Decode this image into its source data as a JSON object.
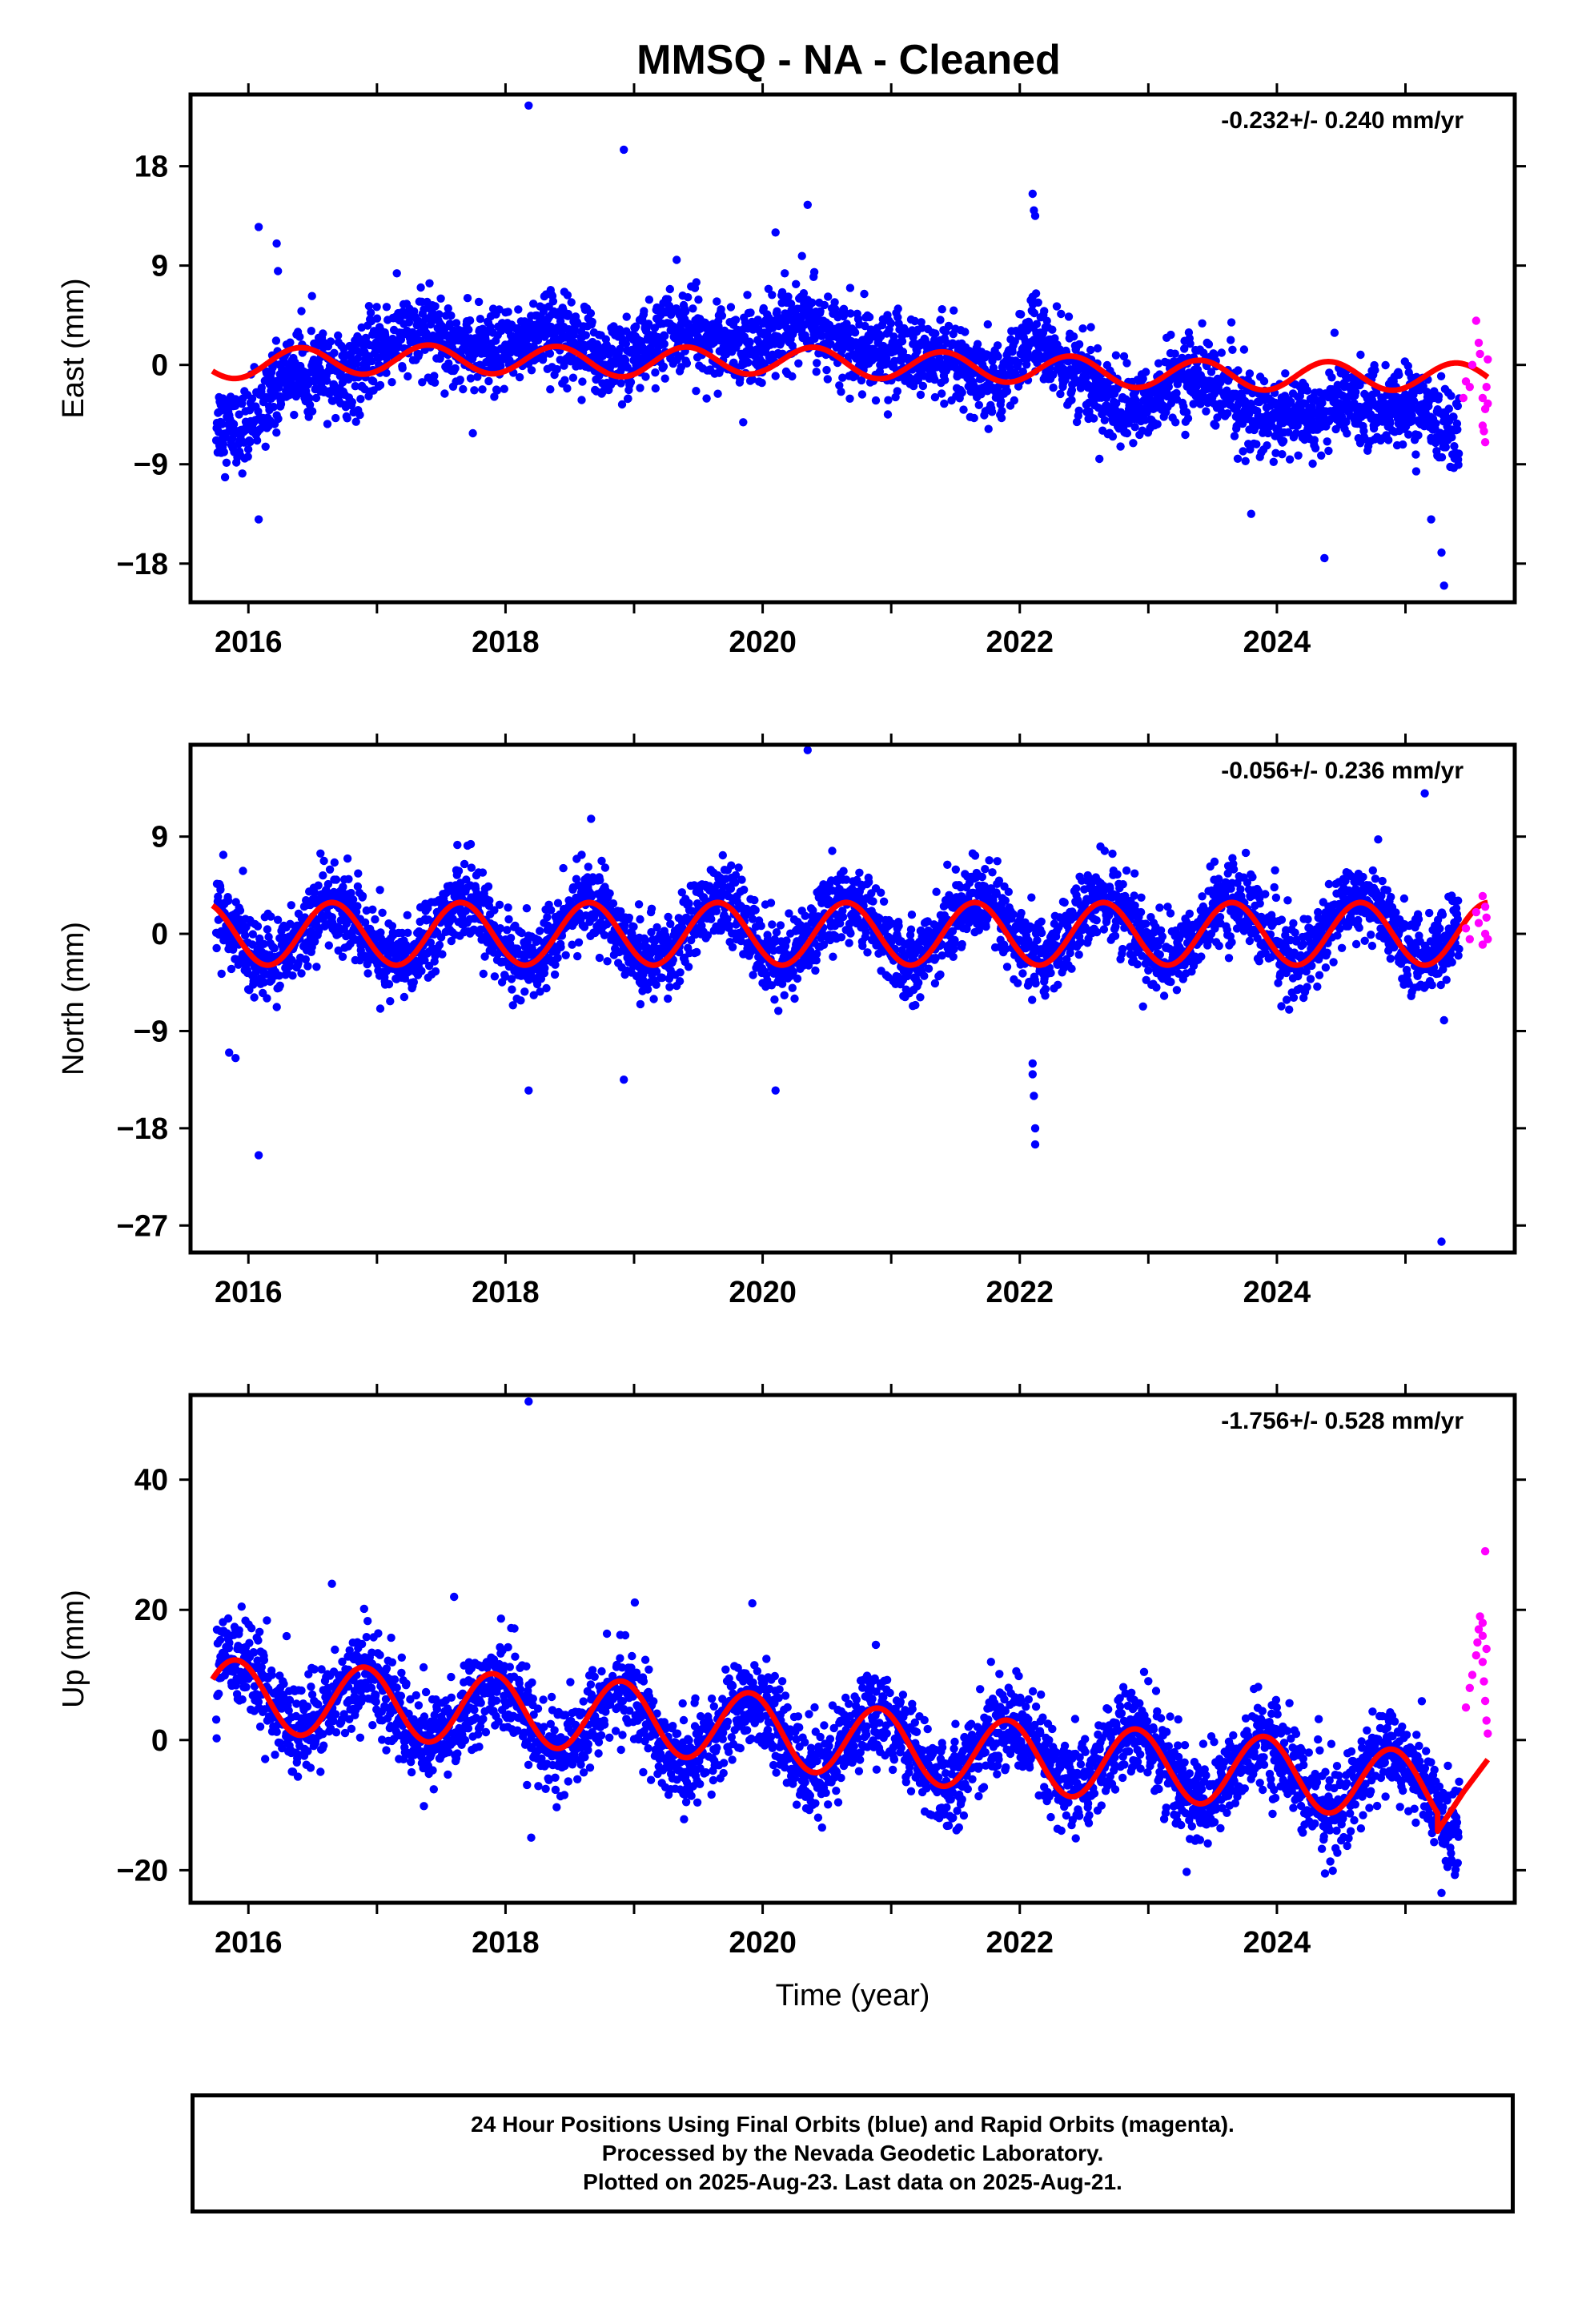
{
  "title": "MMSQ  - NA - Cleaned",
  "colors": {
    "final": "#0000ff",
    "rapid": "#ff00ff",
    "model": "#ff0000",
    "axis": "#000000"
  },
  "caption": {
    "line1": "24 Hour Positions Using Final Orbits (blue) and Rapid Orbits (magenta).",
    "line2": "Processed by the Nevada Geodetic Laboratory.",
    "line3": "Plotted on 2025-Aug-23. Last data on 2025-Aug-21."
  },
  "chart_data": [
    {
      "type": "scatter",
      "name": "east",
      "ylabel": "East (mm)",
      "xlabel": "",
      "rate": "-0.232+/- 0.240 mm/yr",
      "xlim": [
        2015.55,
        2025.85
      ],
      "ylim": [
        -21.5,
        24.5
      ],
      "xticks": [
        2016,
        2018,
        2020,
        2022,
        2024
      ],
      "xtick_labels": [
        "2016",
        "2018",
        "2020",
        "2022",
        "2024"
      ],
      "yticks": [
        -18,
        -9,
        0,
        9,
        18
      ],
      "ytick_labels": [
        "−18",
        "−9",
        "0",
        "9",
        "18"
      ],
      "grid": false,
      "series": [
        {
          "kind": "final",
          "start": 2015.75,
          "end": 2025.42,
          "trend": [
            [
              2015.75,
              -4
            ],
            [
              2016.0,
              -5
            ],
            [
              2016.3,
              -2
            ],
            [
              2016.6,
              -1
            ],
            [
              2017.0,
              2
            ],
            [
              2018.0,
              2
            ],
            [
              2019.0,
              1.5
            ],
            [
              2020.0,
              3
            ],
            [
              2021.0,
              2
            ],
            [
              2021.3,
              -1
            ],
            [
              2021.8,
              -1
            ],
            [
              2022.1,
              3
            ],
            [
              2022.3,
              -1
            ],
            [
              2022.8,
              -3
            ],
            [
              2023.3,
              -2
            ],
            [
              2023.8,
              -3
            ],
            [
              2024.3,
              -6
            ],
            [
              2024.6,
              -3
            ],
            [
              2025.0,
              -3
            ],
            [
              2025.42,
              -8
            ]
          ],
          "annual_amp": 1.2,
          "annual_phase": 0.1,
          "noise": 1.8,
          "outliers": [
            [
              2016.08,
              12.5
            ],
            [
              2016.22,
              11
            ],
            [
              2016.23,
              8.5
            ],
            [
              2016.08,
              -14
            ],
            [
              2018.18,
              23.5
            ],
            [
              2018.92,
              19.5
            ],
            [
              2020.1,
              12
            ],
            [
              2020.35,
              14.5
            ],
            [
              2022.1,
              15.5
            ],
            [
              2022.11,
              14
            ],
            [
              2022.12,
              13.5
            ],
            [
              2023.8,
              -13.5
            ],
            [
              2024.37,
              -17.5
            ],
            [
              2025.3,
              -20
            ],
            [
              2025.28,
              -17
            ],
            [
              2025.2,
              -14
            ]
          ]
        },
        {
          "kind": "rapid",
          "start": 2025.45,
          "end": 2025.64,
          "points": [
            [
              2025.45,
              -3
            ],
            [
              2025.47,
              -1.5
            ],
            [
              2025.5,
              -2
            ],
            [
              2025.52,
              0
            ],
            [
              2025.55,
              4
            ],
            [
              2025.57,
              2
            ],
            [
              2025.58,
              1
            ],
            [
              2025.6,
              -3
            ],
            [
              2025.6,
              -5.5
            ],
            [
              2025.62,
              -7
            ],
            [
              2025.62,
              -4
            ],
            [
              2025.63,
              -2
            ],
            [
              2025.64,
              -3.5
            ],
            [
              2025.64,
              0.5
            ],
            [
              2025.61,
              -6
            ]
          ]
        },
        {
          "kind": "model",
          "start": 2015.72,
          "end": 2025.64,
          "trend": [
            [
              2015.72,
              0
            ],
            [
              2017.0,
              0.5
            ],
            [
              2018.0,
              0.5
            ],
            [
              2019.0,
              0.2
            ],
            [
              2020.0,
              0.5
            ],
            [
              2021.0,
              0
            ],
            [
              2022.0,
              -0.3
            ],
            [
              2023.0,
              -0.8
            ],
            [
              2024.0,
              -1.0
            ],
            [
              2025.0,
              -1.0
            ],
            [
              2025.64,
              -1.2
            ]
          ],
          "annual_amp": 1.3,
          "annual_phase": 0.15
        }
      ]
    },
    {
      "type": "scatter",
      "name": "north",
      "ylabel": "North (mm)",
      "xlabel": "",
      "rate": "-0.056+/- 0.236 mm/yr",
      "xlim": [
        2015.55,
        2025.85
      ],
      "ylim": [
        -29.5,
        17.5
      ],
      "xticks": [
        2016,
        2018,
        2020,
        2022,
        2024
      ],
      "xtick_labels": [
        "2016",
        "2018",
        "2020",
        "2022",
        "2024"
      ],
      "yticks": [
        -27,
        -18,
        -9,
        0,
        9
      ],
      "ytick_labels": [
        "−27",
        "−18",
        "−9",
        "0",
        "9"
      ],
      "grid": false,
      "series": [
        {
          "kind": "final",
          "start": 2015.75,
          "end": 2025.42,
          "trend": [
            [
              2015.75,
              0
            ],
            [
              2025.42,
              0.5
            ]
          ],
          "annual_amp": 2.8,
          "annual_phase": 0.4,
          "noise": 1.8,
          "outliers": [
            [
              2015.85,
              -11
            ],
            [
              2015.9,
              -11.5
            ],
            [
              2016.08,
              -20.5
            ],
            [
              2018.18,
              -14.5
            ],
            [
              2018.92,
              -13.5
            ],
            [
              2020.1,
              -14.5
            ],
            [
              2020.35,
              17
            ],
            [
              2022.1,
              -12
            ],
            [
              2022.1,
              -13
            ],
            [
              2022.11,
              -15
            ],
            [
              2022.12,
              -18
            ],
            [
              2022.12,
              -19.5
            ],
            [
              2025.15,
              13
            ],
            [
              2025.28,
              -28.5
            ],
            [
              2025.3,
              -8
            ]
          ]
        },
        {
          "kind": "rapid",
          "start": 2025.45,
          "end": 2025.64,
          "points": [
            [
              2025.47,
              0.5
            ],
            [
              2025.5,
              -0.5
            ],
            [
              2025.55,
              2
            ],
            [
              2025.57,
              1
            ],
            [
              2025.6,
              3.5
            ],
            [
              2025.6,
              -1
            ],
            [
              2025.62,
              0
            ],
            [
              2025.63,
              1.5
            ],
            [
              2025.64,
              -0.5
            ],
            [
              2025.62,
              2.5
            ]
          ]
        },
        {
          "kind": "model",
          "start": 2015.72,
          "end": 2025.64,
          "trend": [
            [
              2015.72,
              0
            ],
            [
              2025.64,
              0
            ]
          ],
          "annual_amp": 2.9,
          "annual_phase": 0.4
        }
      ]
    },
    {
      "type": "scatter",
      "name": "up",
      "ylabel": "Up (mm)",
      "xlabel": "Time (year)",
      "rate": "-1.756+/- 0.528 mm/yr",
      "xlim": [
        2015.55,
        2025.85
      ],
      "ylim": [
        -25,
        53
      ],
      "xticks": [
        2016,
        2018,
        2020,
        2022,
        2024
      ],
      "xtick_labels": [
        "2016",
        "2018",
        "2020",
        "2022",
        "2024"
      ],
      "yticks": [
        -20,
        0,
        20,
        40
      ],
      "ytick_labels": [
        "−20",
        "0",
        "20",
        "40"
      ],
      "grid": false,
      "series": [
        {
          "kind": "final",
          "start": 2015.75,
          "end": 2025.42,
          "trend": [
            [
              2015.75,
              8
            ],
            [
              2016.6,
              6
            ],
            [
              2017.6,
              4
            ],
            [
              2018.6,
              3
            ],
            [
              2019.6,
              1
            ],
            [
              2020.6,
              0
            ],
            [
              2021.6,
              -2
            ],
            [
              2022.6,
              -3
            ],
            [
              2023.6,
              -5
            ],
            [
              2024.6,
              -6
            ],
            [
              2025.42,
              -8
            ]
          ],
          "annual_amp": 5,
          "annual_phase": 0.65,
          "noise": 3.5,
          "outliers": [
            [
              2018.18,
              52
            ],
            [
              2019.92,
              21
            ],
            [
              2018.2,
              -15
            ],
            [
              2025.28,
              -23.5
            ],
            [
              2016.65,
              24
            ],
            [
              2017.6,
              22
            ]
          ]
        },
        {
          "kind": "rapid",
          "start": 2025.45,
          "end": 2025.64,
          "points": [
            [
              2025.47,
              5
            ],
            [
              2025.5,
              8
            ],
            [
              2025.52,
              10
            ],
            [
              2025.55,
              13
            ],
            [
              2025.56,
              15
            ],
            [
              2025.57,
              17
            ],
            [
              2025.58,
              19
            ],
            [
              2025.6,
              18
            ],
            [
              2025.6,
              12
            ],
            [
              2025.61,
              9
            ],
            [
              2025.62,
              29
            ],
            [
              2025.62,
              6
            ],
            [
              2025.63,
              3
            ],
            [
              2025.64,
              1
            ],
            [
              2025.63,
              14
            ],
            [
              2025.6,
              16
            ]
          ]
        },
        {
          "kind": "model",
          "start": 2015.72,
          "end": 2025.64,
          "trend": [
            [
              2015.72,
              7
            ],
            [
              2016.6,
              6
            ],
            [
              2017.6,
              5
            ],
            [
              2018.6,
              4
            ],
            [
              2019.6,
              2.5
            ],
            [
              2020.6,
              0
            ],
            [
              2021.6,
              -2
            ],
            [
              2022.6,
              -3.5
            ],
            [
              2023.6,
              -4.5
            ],
            [
              2024.6,
              -6
            ],
            [
              2025.25,
              -8
            ],
            [
              2025.64,
              -8
            ]
          ],
          "annual_amp": 5.5,
          "annual_phase": 0.65,
          "bend": [
            [
              2025.25,
              -14
            ],
            [
              2025.45,
              -8
            ],
            [
              2025.64,
              -3
            ]
          ]
        }
      ]
    }
  ]
}
